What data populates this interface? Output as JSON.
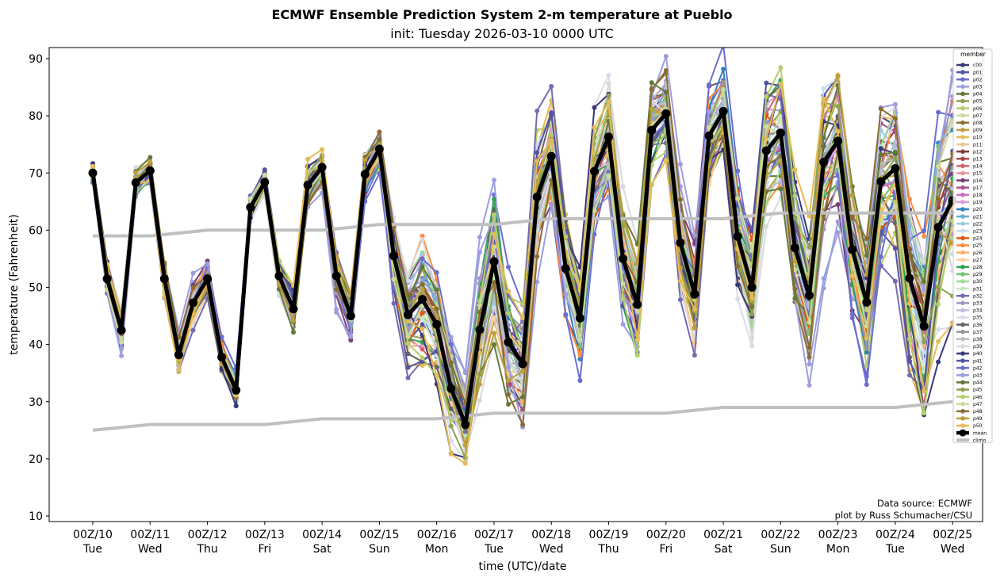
{
  "title": "ECMWF Ensemble Prediction System 2-m temperature at Pueblo",
  "subtitle": "init: Tuesday 2026-03-10 0000 UTC",
  "credits": [
    "Data source: ECMWF",
    "plot by Russ Schumacher/CSU"
  ],
  "chart_data": {
    "type": "line",
    "title": "ECMWF Ensemble Prediction System 2-m temperature at Pueblo",
    "subtitle": "init: Tuesday 2026-03-10 0000 UTC",
    "xlabel": "time (UTC)/date",
    "ylabel": "temperature (Fahrenheit)",
    "ylim": [
      9,
      92
    ],
    "yticks": [
      10,
      20,
      30,
      40,
      50,
      60,
      70,
      80,
      90
    ],
    "time_step_hours": 6,
    "xlim_steps": [
      -1.6,
      62.5
    ],
    "xticks": [
      {
        "step": 0,
        "top": "00Z/10",
        "bottom": "Tue"
      },
      {
        "step": 4,
        "top": "00Z/11",
        "bottom": "Wed"
      },
      {
        "step": 8,
        "top": "00Z/12",
        "bottom": "Thu"
      },
      {
        "step": 12,
        "top": "00Z/13",
        "bottom": "Fri"
      },
      {
        "step": 16,
        "top": "00Z/14",
        "bottom": "Sat"
      },
      {
        "step": 20,
        "top": "00Z/15",
        "bottom": "Sun"
      },
      {
        "step": 24,
        "top": "00Z/16",
        "bottom": "Mon"
      },
      {
        "step": 28,
        "top": "00Z/17",
        "bottom": "Tue"
      },
      {
        "step": 32,
        "top": "00Z/18",
        "bottom": "Wed"
      },
      {
        "step": 36,
        "top": "00Z/19",
        "bottom": "Thu"
      },
      {
        "step": 40,
        "top": "00Z/20",
        "bottom": "Fri"
      },
      {
        "step": 44,
        "top": "00Z/21",
        "bottom": "Sat"
      },
      {
        "step": 48,
        "top": "00Z/22",
        "bottom": "Sun"
      },
      {
        "step": 52,
        "top": "00Z/23",
        "bottom": "Mon"
      },
      {
        "step": 56,
        "top": "00Z/24",
        "bottom": "Tue"
      },
      {
        "step": 60,
        "top": "00Z/25",
        "bottom": "Wed"
      }
    ],
    "legend": {
      "title": "member",
      "position": "upper-right"
    },
    "mean": {
      "name": "mean",
      "color": "#000000",
      "values": [
        70,
        51.5,
        42.5,
        68.3,
        70.4,
        51.5,
        38.2,
        47.3,
        51.5,
        37.8,
        32,
        64,
        68.4,
        52,
        46.2,
        67.9,
        71,
        52,
        45,
        69.8,
        74.2,
        55.5,
        45.2,
        47.9,
        43.5,
        32.3,
        26,
        42.6,
        54.5,
        40.4,
        36.6,
        65.8,
        72.9,
        53.3,
        44.6,
        70.3,
        76.3,
        55,
        47,
        77.5,
        80.4,
        57.8,
        48.8,
        76.5,
        80.8,
        58.9,
        50,
        73.9,
        77,
        56.9,
        48.6,
        71.9,
        75.6,
        56.6,
        47.4,
        68.5,
        70.8,
        51.6,
        43.2,
        60.5,
        65.2
      ]
    },
    "climo": [
      {
        "name": "climo max",
        "color": "#c0c0c0",
        "steps": [
          0,
          4,
          8,
          12,
          16,
          20,
          24,
          28,
          32,
          36,
          40,
          44,
          48,
          52,
          56,
          60
        ],
        "values": [
          59,
          59,
          60,
          60,
          60,
          61,
          61,
          61,
          62,
          62,
          62,
          62,
          63,
          63,
          63,
          63
        ]
      },
      {
        "name": "climo min",
        "color": "#c0c0c0",
        "steps": [
          0,
          4,
          8,
          12,
          16,
          20,
          24,
          28,
          32,
          36,
          40,
          44,
          48,
          52,
          56,
          60
        ],
        "values": [
          25,
          26,
          26,
          26,
          27,
          27,
          27,
          28,
          28,
          28,
          28,
          29,
          29,
          29,
          29,
          30
        ]
      }
    ],
    "members": [
      {
        "name": "c00",
        "color": "#393b79",
        "spread": 0.9,
        "phase": 0.3
      },
      {
        "name": "p01",
        "color": "#5254a3",
        "spread": 1.1,
        "phase": 1.7
      },
      {
        "name": "p02",
        "color": "#6b6ecf",
        "spread": 1.3,
        "phase": 2.9
      },
      {
        "name": "p03",
        "color": "#9c9ede",
        "spread": 1.6,
        "phase": 4.1
      },
      {
        "name": "p04",
        "color": "#637939",
        "spread": 0.8,
        "phase": 5.3
      },
      {
        "name": "p05",
        "color": "#8ca252",
        "spread": 1.0,
        "phase": 0.9
      },
      {
        "name": "p06",
        "color": "#b5cf6b",
        "spread": 1.2,
        "phase": 2.2
      },
      {
        "name": "p07",
        "color": "#cedb9c",
        "spread": 0.7,
        "phase": 3.4
      },
      {
        "name": "p08",
        "color": "#8c6d31",
        "spread": 1.1,
        "phase": 4.6
      },
      {
        "name": "p09",
        "color": "#bd9e39",
        "spread": 0.9,
        "phase": 5.8
      },
      {
        "name": "p10",
        "color": "#e7ba52",
        "spread": 1.3,
        "phase": 1.1
      },
      {
        "name": "p11",
        "color": "#e7cb94",
        "spread": 0.6,
        "phase": 2.5
      },
      {
        "name": "p12",
        "color": "#843c39",
        "spread": 0.8,
        "phase": 3.7
      },
      {
        "name": "p13",
        "color": "#ad494a",
        "spread": 0.7,
        "phase": 4.9
      },
      {
        "name": "p14",
        "color": "#d6616b",
        "spread": 0.9,
        "phase": 0.5
      },
      {
        "name": "p15",
        "color": "#e7969c",
        "spread": 0.8,
        "phase": 1.9
      },
      {
        "name": "p16",
        "color": "#7b4173",
        "spread": 1.2,
        "phase": 3.1
      },
      {
        "name": "p17",
        "color": "#a55194",
        "spread": 0.9,
        "phase": 4.3
      },
      {
        "name": "p18",
        "color": "#ce6dbd",
        "spread": 0.7,
        "phase": 5.5
      },
      {
        "name": "p19",
        "color": "#de9ed6",
        "spread": 0.8,
        "phase": 0.7
      },
      {
        "name": "p20",
        "color": "#3182bd",
        "spread": 1.0,
        "phase": 2.0
      },
      {
        "name": "p21",
        "color": "#6baed6",
        "spread": 0.8,
        "phase": 3.2
      },
      {
        "name": "p22",
        "color": "#9ecae1",
        "spread": 0.9,
        "phase": 4.4
      },
      {
        "name": "p23",
        "color": "#c6dbef",
        "spread": 1.1,
        "phase": 5.6
      },
      {
        "name": "p24",
        "color": "#e6550d",
        "spread": 1.0,
        "phase": 1.3
      },
      {
        "name": "p25",
        "color": "#fd8d3c",
        "spread": 1.1,
        "phase": 2.6
      },
      {
        "name": "p26",
        "color": "#fdae6b",
        "spread": 0.9,
        "phase": 3.8
      },
      {
        "name": "p27",
        "color": "#fdd0a2",
        "spread": 1.2,
        "phase": 5.0
      },
      {
        "name": "p28",
        "color": "#31a354",
        "spread": 1.0,
        "phase": 0.2
      },
      {
        "name": "p29",
        "color": "#74c476",
        "spread": 0.8,
        "phase": 1.5
      },
      {
        "name": "p30",
        "color": "#a1d99b",
        "spread": 0.9,
        "phase": 2.8
      },
      {
        "name": "p31",
        "color": "#c7e9c0",
        "spread": 0.7,
        "phase": 4.0
      },
      {
        "name": "p32",
        "color": "#756bb1",
        "spread": 1.6,
        "phase": 5.2
      },
      {
        "name": "p33",
        "color": "#9e9ac8",
        "spread": 1.0,
        "phase": 0.8
      },
      {
        "name": "p34",
        "color": "#bcbddc",
        "spread": 0.8,
        "phase": 2.1
      },
      {
        "name": "p35",
        "color": "#dadaeb",
        "spread": 1.3,
        "phase": 3.3
      },
      {
        "name": "p36",
        "color": "#636363",
        "spread": 1.1,
        "phase": 4.5
      },
      {
        "name": "p37",
        "color": "#969696",
        "spread": 0.8,
        "phase": 5.7
      },
      {
        "name": "p38",
        "color": "#bdbdbd",
        "spread": 0.9,
        "phase": 1.0
      },
      {
        "name": "p39",
        "color": "#d9d9d9",
        "spread": 1.4,
        "phase": 2.3
      },
      {
        "name": "p40",
        "color": "#393b79",
        "spread": 1.3,
        "phase": 3.5
      },
      {
        "name": "p41",
        "color": "#5254a3",
        "spread": 1.2,
        "phase": 4.7
      },
      {
        "name": "p42",
        "color": "#6b6ecf",
        "spread": 1.5,
        "phase": 5.9
      },
      {
        "name": "p43",
        "color": "#9c9ede",
        "spread": 1.8,
        "phase": 0.4
      },
      {
        "name": "p44",
        "color": "#637939",
        "spread": 1.2,
        "phase": 1.6
      },
      {
        "name": "p45",
        "color": "#8ca252",
        "spread": 0.9,
        "phase": 2.7
      },
      {
        "name": "p46",
        "color": "#b5cf6b",
        "spread": 1.1,
        "phase": 3.9
      },
      {
        "name": "p47",
        "color": "#cedb9c",
        "spread": 0.8,
        "phase": 5.1
      },
      {
        "name": "p48",
        "color": "#8c6d31",
        "spread": 1.2,
        "phase": 0.6
      },
      {
        "name": "p49",
        "color": "#bd9e39",
        "spread": 1.0,
        "phase": 1.8
      },
      {
        "name": "p50",
        "color": "#e7ba52",
        "spread": 1.4,
        "phase": 3.0
      }
    ],
    "member_spread_by_step_F": [
      1,
      2,
      2.5,
      1.5,
      1.5,
      2,
      2,
      2.5,
      2,
      2,
      2,
      1.5,
      1.5,
      2,
      3,
      2.5,
      2,
      3,
      3,
      3,
      2.5,
      5,
      6,
      8,
      7,
      7,
      5,
      8,
      10,
      8,
      7,
      8,
      6,
      6,
      6,
      7,
      7,
      7,
      7,
      6,
      5,
      6,
      6,
      6,
      6,
      7,
      7,
      8,
      8,
      8,
      8,
      10,
      9,
      9,
      9,
      10,
      10,
      10,
      12,
      14,
      15
    ],
    "legend_labels": {
      "mean": "mean",
      "climo": "climo"
    }
  }
}
